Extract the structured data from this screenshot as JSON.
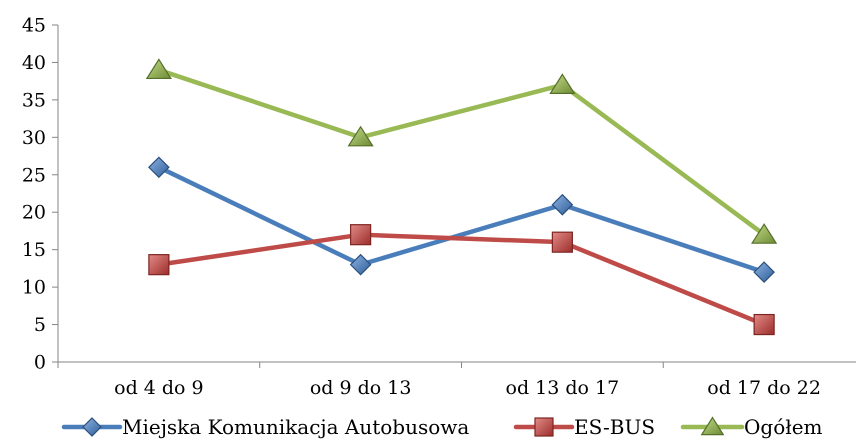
{
  "chart_data": {
    "type": "line",
    "categories": [
      "od 4 do 9",
      "od 9 do 13",
      "od 13 do 17",
      "od 17 do 22"
    ],
    "ylim": [
      0,
      45
    ],
    "yticks": [
      "0",
      "5",
      "10",
      "15",
      "20",
      "25",
      "30",
      "35",
      "40",
      "45"
    ],
    "grid": false,
    "legend_position": "bottom",
    "series": [
      {
        "name": "Miejska Komunikacja Autobusowa",
        "values": [
          26,
          13,
          21,
          12
        ],
        "color": "#4a7ebb",
        "marker": "diamond"
      },
      {
        "name": "ES-BUS",
        "values": [
          13,
          17,
          16,
          5
        ],
        "color": "#be4b48",
        "marker": "square"
      },
      {
        "name": "Ogółem",
        "values": [
          39,
          30,
          37,
          17
        ],
        "color": "#98b954",
        "marker": "triangle"
      }
    ]
  }
}
